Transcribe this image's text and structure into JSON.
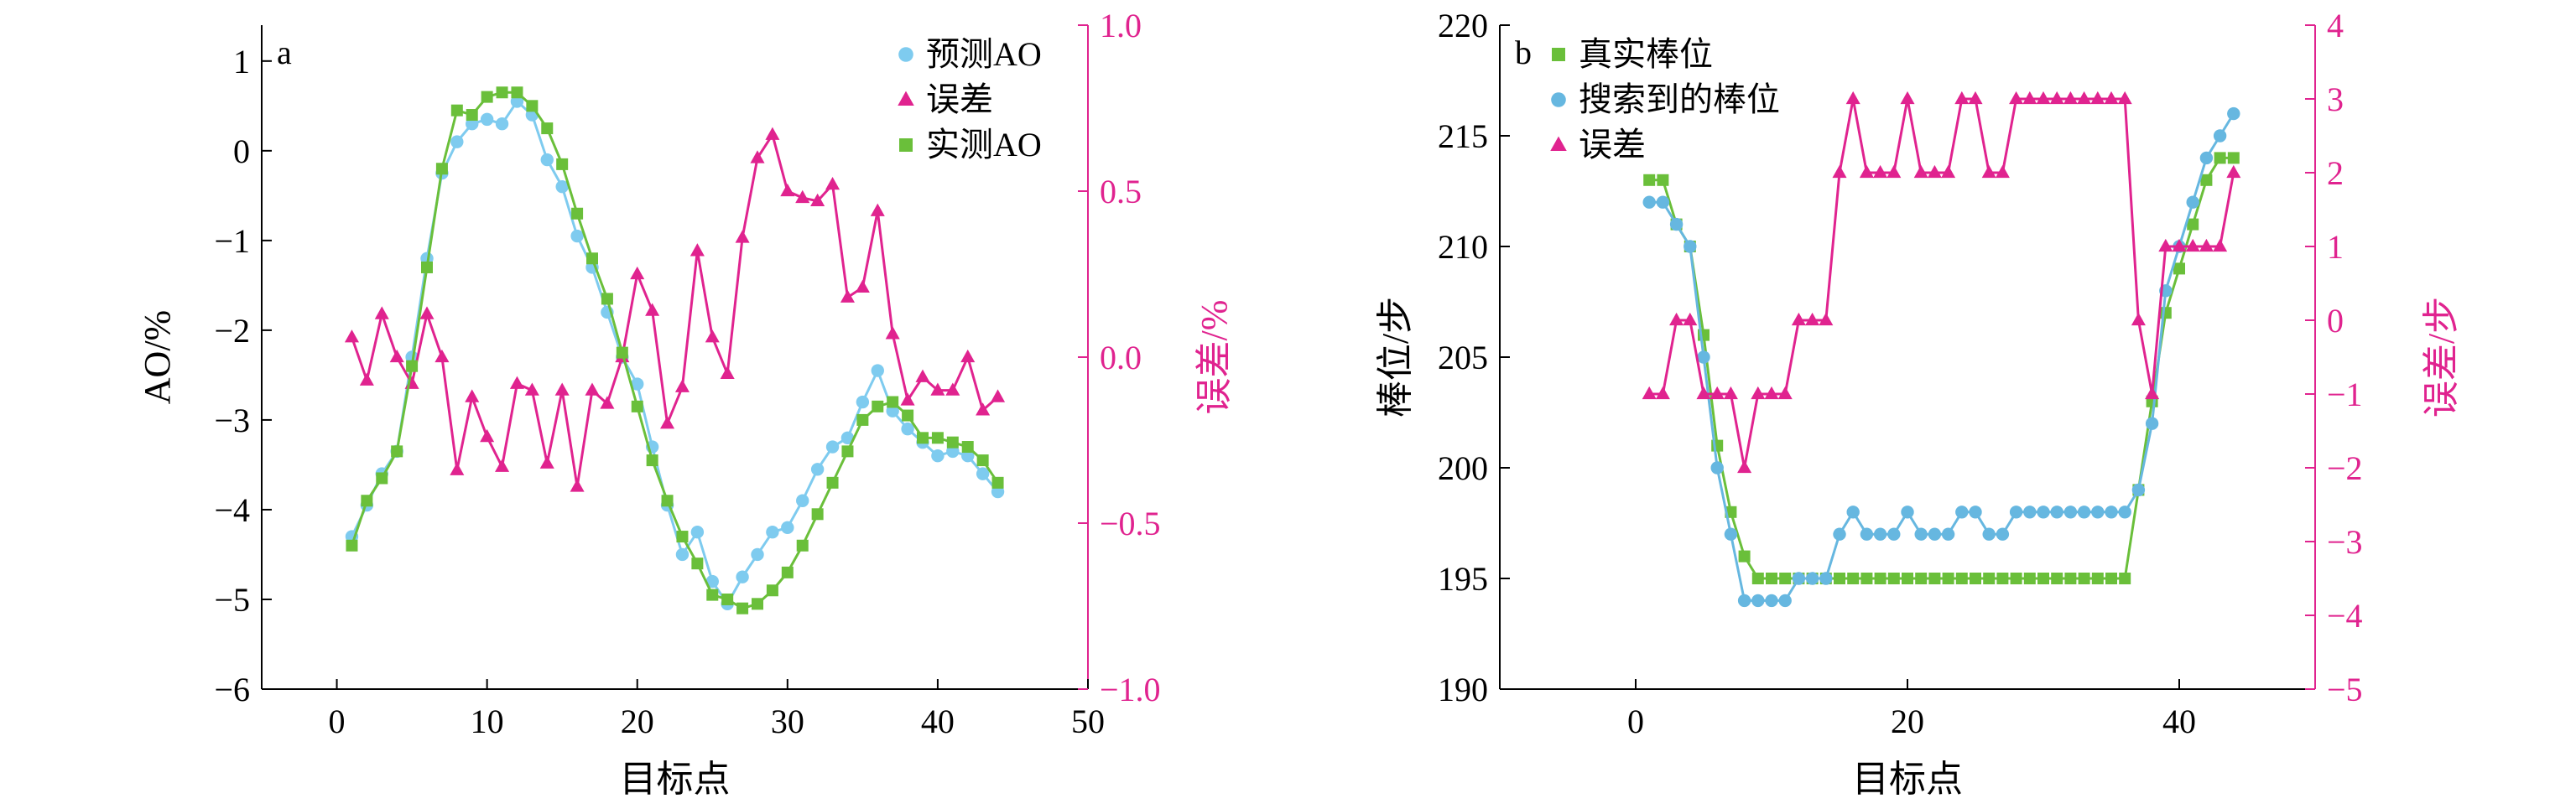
{
  "colors": {
    "blue": "#7ecbef",
    "blue_dark": "#66b7e0",
    "magenta": "#e0238f",
    "green": "#6abf3a",
    "axis": "#000000"
  },
  "chart_data": [
    {
      "type": "line",
      "panel_label": "a",
      "xlabel": "目标点",
      "ylabel": "AO/%",
      "y2label": "误差/%",
      "xlim": [
        -5,
        50
      ],
      "ylim": [
        -6,
        1.4
      ],
      "y2lim": [
        -1.0,
        1.0
      ],
      "xticks": [
        "0",
        "10",
        "20",
        "30",
        "40",
        "50"
      ],
      "yticks": [
        "−6",
        "−5",
        "−4",
        "−3",
        "−2",
        "−1",
        "0",
        "1"
      ],
      "y2ticks": [
        "−1.0",
        "−0.5",
        "0.0",
        "0.5",
        "1.0"
      ],
      "legend_position": "top-right",
      "series": [
        {
          "name": "预测AO",
          "axis": "left",
          "marker": "circle",
          "color": "#7ecbef",
          "x": [
            1,
            2,
            3,
            4,
            5,
            6,
            7,
            8,
            9,
            10,
            11,
            12,
            13,
            14,
            15,
            16,
            17,
            18,
            19,
            20,
            21,
            22,
            23,
            24,
            25,
            26,
            27,
            28,
            29,
            30,
            31,
            32,
            33,
            34,
            35,
            36,
            37,
            38,
            39,
            40,
            41,
            42,
            43,
            44
          ],
          "y": [
            -4.3,
            -3.95,
            -3.6,
            -3.35,
            -2.3,
            -1.2,
            -0.25,
            0.1,
            0.3,
            0.35,
            0.3,
            0.55,
            0.4,
            -0.1,
            -0.4,
            -0.95,
            -1.3,
            -1.8,
            -2.3,
            -2.6,
            -3.3,
            -3.95,
            -4.5,
            -4.25,
            -4.8,
            -5.05,
            -4.75,
            -4.5,
            -4.25,
            -4.2,
            -3.9,
            -3.55,
            -3.3,
            -3.2,
            -2.8,
            -2.45,
            -2.9,
            -3.1,
            -3.25,
            -3.4,
            -3.35,
            -3.4,
            -3.6,
            -3.8
          ]
        },
        {
          "name": "误差",
          "axis": "right",
          "marker": "triangle",
          "color": "#e0238f",
          "x": [
            1,
            2,
            3,
            4,
            5,
            6,
            7,
            8,
            9,
            10,
            11,
            12,
            13,
            14,
            15,
            16,
            17,
            18,
            19,
            20,
            21,
            22,
            23,
            24,
            25,
            26,
            27,
            28,
            29,
            30,
            31,
            32,
            33,
            34,
            35,
            36,
            37,
            38,
            39,
            40,
            41,
            42,
            43,
            44
          ],
          "y": [
            0.06,
            -0.07,
            0.13,
            0.0,
            -0.08,
            0.13,
            0.0,
            -0.34,
            -0.12,
            -0.24,
            -0.33,
            -0.08,
            -0.1,
            -0.32,
            -0.1,
            -0.39,
            -0.1,
            -0.14,
            0.0,
            0.25,
            0.14,
            -0.2,
            -0.09,
            0.32,
            0.06,
            -0.05,
            0.36,
            0.6,
            0.67,
            0.5,
            0.48,
            0.47,
            0.52,
            0.18,
            0.21,
            0.44,
            0.07,
            -0.13,
            -0.06,
            -0.1,
            -0.1,
            0.0,
            -0.16,
            -0.12
          ]
        },
        {
          "name": "实测AO",
          "axis": "left",
          "marker": "square",
          "color": "#6abf3a",
          "x": [
            1,
            2,
            3,
            4,
            5,
            6,
            7,
            8,
            9,
            10,
            11,
            12,
            13,
            14,
            15,
            16,
            17,
            18,
            19,
            20,
            21,
            22,
            23,
            24,
            25,
            26,
            27,
            28,
            29,
            30,
            31,
            32,
            33,
            34,
            35,
            36,
            37,
            38,
            39,
            40,
            41,
            42,
            43,
            44
          ],
          "y": [
            -4.4,
            -3.9,
            -3.65,
            -3.35,
            -2.4,
            -1.3,
            -0.2,
            0.45,
            0.4,
            0.6,
            0.65,
            0.65,
            0.5,
            0.25,
            -0.15,
            -0.7,
            -1.2,
            -1.65,
            -2.25,
            -2.85,
            -3.45,
            -3.9,
            -4.3,
            -4.6,
            -4.95,
            -5.0,
            -5.1,
            -5.05,
            -4.9,
            -4.7,
            -4.4,
            -4.05,
            -3.7,
            -3.35,
            -3.0,
            -2.85,
            -2.8,
            -2.95,
            -3.2,
            -3.2,
            -3.25,
            -3.3,
            -3.45,
            -3.7
          ]
        }
      ]
    },
    {
      "type": "line",
      "panel_label": "b",
      "xlabel": "目标点",
      "ylabel": "棒位/步",
      "y2label": "误差/步",
      "xlim": [
        -10,
        50
      ],
      "ylim": [
        190,
        220
      ],
      "y2lim": [
        -5,
        4
      ],
      "xticks": [
        "0",
        "20",
        "40"
      ],
      "yticks": [
        "190",
        "195",
        "200",
        "205",
        "210",
        "215",
        "220"
      ],
      "y2ticks": [
        "−5",
        "−4",
        "−3",
        "−2",
        "−1",
        "0",
        "1",
        "2",
        "3",
        "4"
      ],
      "legend_position": "top-left",
      "series": [
        {
          "name": "真实棒位",
          "axis": "left",
          "marker": "square",
          "color": "#6abf3a",
          "x": [
            1,
            2,
            3,
            4,
            5,
            6,
            7,
            8,
            9,
            10,
            11,
            12,
            13,
            14,
            15,
            16,
            17,
            18,
            19,
            20,
            21,
            22,
            23,
            24,
            25,
            26,
            27,
            28,
            29,
            30,
            31,
            32,
            33,
            34,
            35,
            36,
            37,
            38,
            39,
            40,
            41,
            42,
            43,
            44
          ],
          "y": [
            213,
            213,
            211,
            210,
            206,
            201,
            198,
            196,
            195,
            195,
            195,
            195,
            195,
            195,
            195,
            195,
            195,
            195,
            195,
            195,
            195,
            195,
            195,
            195,
            195,
            195,
            195,
            195,
            195,
            195,
            195,
            195,
            195,
            195,
            195,
            195,
            199,
            203,
            207,
            209,
            211,
            213,
            214,
            214
          ]
        },
        {
          "name": "搜索到的棒位",
          "axis": "left",
          "marker": "circle",
          "color": "#66b7e0",
          "x": [
            1,
            2,
            3,
            4,
            5,
            6,
            7,
            8,
            9,
            10,
            11,
            12,
            13,
            14,
            15,
            16,
            17,
            18,
            19,
            20,
            21,
            22,
            23,
            24,
            25,
            26,
            27,
            28,
            29,
            30,
            31,
            32,
            33,
            34,
            35,
            36,
            37,
            38,
            39,
            40,
            41,
            42,
            43,
            44
          ],
          "y": [
            212,
            212,
            211,
            210,
            205,
            200,
            197,
            194,
            194,
            194,
            194,
            195,
            195,
            195,
            197,
            198,
            197,
            197,
            197,
            198,
            197,
            197,
            197,
            198,
            198,
            197,
            197,
            198,
            198,
            198,
            198,
            198,
            198,
            198,
            198,
            198,
            199,
            202,
            208,
            210,
            212,
            214,
            215,
            216
          ]
        },
        {
          "name": "误差",
          "axis": "right",
          "marker": "triangle",
          "color": "#e0238f",
          "x": [
            1,
            2,
            3,
            4,
            5,
            6,
            7,
            8,
            9,
            10,
            11,
            12,
            13,
            14,
            15,
            16,
            17,
            18,
            19,
            20,
            21,
            22,
            23,
            24,
            25,
            26,
            27,
            28,
            29,
            30,
            31,
            32,
            33,
            34,
            35,
            36,
            37,
            38,
            39,
            40,
            41,
            42,
            43,
            44
          ],
          "y": [
            -1,
            -1,
            0,
            0,
            -1,
            -1,
            -1,
            -2,
            -1,
            -1,
            -1,
            0,
            0,
            0,
            2,
            3,
            2,
            2,
            2,
            3,
            2,
            2,
            2,
            3,
            3,
            2,
            2,
            3,
            3,
            3,
            3,
            3,
            3,
            3,
            3,
            3,
            0,
            -1,
            1,
            1,
            1,
            1,
            1,
            2
          ]
        }
      ]
    }
  ]
}
